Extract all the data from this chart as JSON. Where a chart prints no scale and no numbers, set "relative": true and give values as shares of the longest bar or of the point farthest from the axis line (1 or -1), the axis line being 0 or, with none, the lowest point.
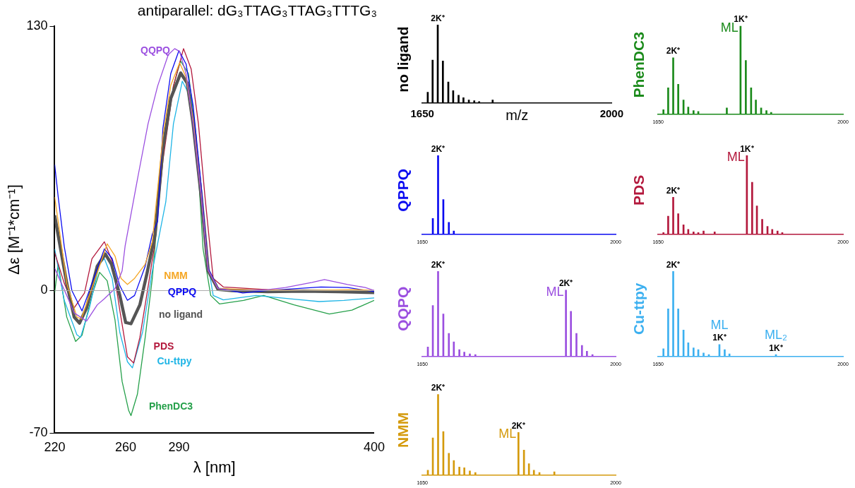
{
  "chart_data": [
    {
      "type": "line",
      "title": "antiparallel: dG₃TTAG₃TTAG₃TTTG₃",
      "xlabel": "λ [nm]",
      "ylabel": "Δε [M⁻¹*cm⁻¹]",
      "xlim": [
        220,
        400
      ],
      "xticks": [
        220,
        260,
        290,
        400
      ],
      "ylim": [
        -70,
        130
      ],
      "yticks": [
        -70,
        0,
        130
      ],
      "ref_lines": [
        {
          "axis": "y",
          "value": 0,
          "color": "#aaaaaa"
        }
      ],
      "series": [
        {
          "name": "QQPQ",
          "color": "#9b4fe0",
          "x": [
            220,
            226.8,
            231,
            238,
            244,
            248,
            254,
            258,
            259.7,
            266.9,
            272.6,
            278,
            284,
            287.6,
            290.4,
            294,
            298,
            302.6,
            306.5,
            312,
            320,
            326,
            340,
            350,
            365,
            372,
            385,
            395,
            400
          ],
          "values": [
            11,
            -2.4,
            -11,
            -15,
            -7,
            -4,
            1,
            9.7,
            22,
            56,
            82,
            100.6,
            116,
            119,
            117.6,
            106.7,
            82,
            46,
            10,
            1,
            0,
            0,
            0.5,
            1.5,
            4,
            5.4,
            3,
            1.5,
            0
          ]
        },
        {
          "name": "NMM",
          "color": "#f5a623",
          "x": [
            220,
            222,
            226.8,
            232.5,
            235,
            241,
            246.7,
            249.6,
            254,
            257.4,
            261,
            265,
            271,
            275,
            281,
            285.4,
            290.4,
            294,
            298,
            302.6,
            306.5,
            312,
            330,
            360,
            390,
            400
          ],
          "values": [
            46,
            34,
            3.6,
            -13,
            -14,
            1.2,
            15.7,
            23,
            17,
            6,
            3,
            6,
            13,
            24,
            76,
            101,
            112,
            105,
            84,
            47,
            10,
            1,
            0.5,
            0,
            0.5,
            0
          ]
        },
        {
          "name": "QPPQ",
          "color": "#0a0af0",
          "x": [
            220,
            222,
            225.4,
            229.7,
            235.4,
            241,
            248,
            252.4,
            256.7,
            261,
            265,
            271,
            275,
            278,
            281,
            285.4,
            290,
            294,
            298,
            302.6,
            306.5,
            312,
            326,
            340,
            370,
            385,
            400
          ],
          "values": [
            62,
            46,
            21.7,
            0,
            -10,
            3.6,
            20.5,
            15.7,
            2.4,
            -4.8,
            -2.4,
            12,
            27.8,
            34,
            80,
            106.7,
            118,
            111.5,
            91,
            51,
            10.9,
            1.2,
            -1.2,
            0,
            1.8,
            1.5,
            -0.5
          ]
        },
        {
          "name": "no ligand",
          "color": "#555555",
          "x": [
            220,
            222,
            226.8,
            231,
            234,
            238,
            244,
            248.5,
            252,
            256.7,
            260,
            263,
            268,
            272,
            276.6,
            281,
            285.4,
            291,
            294.7,
            298,
            302.6,
            306.5,
            312,
            320,
            340,
            360,
            380,
            400
          ],
          "values": [
            37,
            27,
            3.6,
            -13,
            -16,
            -8.5,
            12,
            18,
            13,
            -2.4,
            -15.7,
            -16.3,
            -7,
            8.4,
            27.8,
            70,
            94.5,
            107,
            102,
            82,
            46,
            9.7,
            0.6,
            0,
            -0.5,
            -0.3,
            -0.5,
            -1
          ]
        },
        {
          "name": "PDS",
          "color": "#b3183c",
          "x": [
            220,
            225.4,
            231,
            236.8,
            241,
            248,
            252.4,
            256.7,
            261,
            264.5,
            268,
            272.3,
            276,
            281,
            286.9,
            292.6,
            296.9,
            301,
            304.7,
            309.3,
            315,
            340,
            360,
            380,
            400
          ],
          "values": [
            18.7,
            3.6,
            -8.5,
            -1.2,
            15.7,
            24,
            14.5,
            -9.7,
            -32.6,
            -35.6,
            -23,
            0,
            20.5,
            64,
            100.6,
            119,
            109,
            82,
            46,
            6,
            1.8,
            0.5,
            0,
            -0.5,
            0
          ]
        },
        {
          "name": "Cu-ttpy",
          "color": "#1fb5e6",
          "x": [
            220,
            225.4,
            232.5,
            234.6,
            239.6,
            245.3,
            248,
            252.4,
            256.7,
            261,
            263.8,
            269.5,
            275,
            282.6,
            286.9,
            291.9,
            296.9,
            301,
            305,
            309.3,
            315,
            333.5,
            354.8,
            369,
            383,
            400
          ],
          "values": [
            20.5,
            -4.8,
            -21.7,
            -23,
            -8.5,
            13.3,
            15.7,
            6,
            -20.5,
            -35,
            -38,
            -20.5,
            9.7,
            43.6,
            82,
            103,
            94.5,
            64,
            20.5,
            -2.4,
            -4.6,
            -2.4,
            -4.2,
            -5.4,
            -4.8,
            -3.6
          ]
        },
        {
          "name": "PhenDC3",
          "color": "#25a04a",
          "x": [
            220,
            222,
            226.8,
            231.8,
            235.4,
            241,
            245.3,
            249.6,
            254,
            258,
            261.7,
            263,
            266.6,
            271,
            275,
            281,
            286.9,
            290.9,
            295.4,
            299.7,
            303.6,
            307.9,
            312.9,
            326.4,
            337.7,
            354.8,
            374.7,
            387.5,
            400
          ],
          "values": [
            -1,
            13,
            -13,
            -25,
            -22,
            -2.4,
            9,
            4.8,
            -14.5,
            -44.7,
            -59,
            -61.5,
            -51,
            -23,
            6,
            68,
            100.6,
            113,
            106.7,
            76,
            20.5,
            -2.4,
            -6.6,
            -4.8,
            -2.4,
            -7,
            -11.5,
            -9.6,
            -4.8
          ]
        }
      ]
    },
    {
      "type": "bar",
      "ylabel": "no ligand",
      "xlabel": "m/z",
      "relative": true,
      "xlim": [
        1650,
        2000
      ],
      "xticks": [
        1650,
        2000
      ],
      "annotations": [
        {
          "text": "2K⁺",
          "x": 1678.5,
          "y": 1
        }
      ],
      "series": [
        {
          "color": "#000000",
          "x": [
            1660,
            1669,
            1678.5,
            1688,
            1698,
            1707,
            1717,
            1726,
            1736,
            1746,
            1755,
            1780
          ],
          "values": [
            0.14,
            0.55,
            1,
            0.54,
            0.27,
            0.16,
            0.1,
            0.07,
            0.04,
            0.03,
            0.02,
            0.04
          ]
        }
      ]
    },
    {
      "type": "bar",
      "ylabel": "PhenDC3",
      "relative": true,
      "xlim": [
        1650,
        2000
      ],
      "xticks": [
        1650,
        2000
      ],
      "annotations": [
        {
          "text": "2K⁺",
          "x": 1678.5,
          "y": 0.64
        },
        {
          "text": "1K⁺",
          "x": 1806,
          "y": 1
        },
        {
          "text": "ML",
          "x": 1806,
          "y": 1
        }
      ],
      "series": [
        {
          "color": "#1a8a1a",
          "x": [
            1660,
            1669,
            1678.5,
            1688,
            1698,
            1707,
            1717,
            1726,
            1780,
            1806,
            1816,
            1826,
            1835,
            1845,
            1855,
            1864
          ],
          "values": [
            0.05,
            0.3,
            0.64,
            0.34,
            0.16,
            0.08,
            0.04,
            0.03,
            0.07,
            1,
            0.61,
            0.3,
            0.16,
            0.07,
            0.04,
            0.02
          ]
        }
      ]
    },
    {
      "type": "bar",
      "ylabel": "QPPQ",
      "relative": true,
      "xlim": [
        1650,
        2000
      ],
      "xticks": [
        1650,
        2000
      ],
      "annotations": [
        {
          "text": "2K⁺",
          "x": 1678.5,
          "y": 1
        }
      ],
      "series": [
        {
          "color": "#0a0af0",
          "x": [
            1669,
            1678.5,
            1688,
            1698,
            1707
          ],
          "values": [
            0.2,
            1,
            0.44,
            0.15,
            0.04
          ]
        }
      ]
    },
    {
      "type": "bar",
      "ylabel": "PDS",
      "relative": true,
      "xlim": [
        1650,
        2000
      ],
      "xticks": [
        1650,
        2000
      ],
      "annotations": [
        {
          "text": "2K⁺",
          "x": 1678.5,
          "y": 0.47
        },
        {
          "text": "1K⁺",
          "x": 1818,
          "y": 1
        },
        {
          "text": "ML",
          "x": 1818,
          "y": 1
        }
      ],
      "series": [
        {
          "color": "#b3183c",
          "x": [
            1660,
            1669,
            1678.5,
            1688,
            1698,
            1707,
            1717,
            1726,
            1736,
            1757,
            1818,
            1828,
            1837,
            1847,
            1857,
            1866,
            1876,
            1885
          ],
          "values": [
            0.02,
            0.23,
            0.47,
            0.26,
            0.12,
            0.06,
            0.03,
            0.02,
            0.04,
            0.03,
            1,
            0.66,
            0.36,
            0.19,
            0.1,
            0.06,
            0.04,
            0.02
          ]
        }
      ]
    },
    {
      "type": "bar",
      "ylabel": "QQPQ",
      "relative": true,
      "xlim": [
        1650,
        2000
      ],
      "xticks": [
        1650,
        2000
      ],
      "annotations": [
        {
          "text": "2K⁺",
          "x": 1678.5,
          "y": 1
        },
        {
          "text": "2K⁺",
          "x": 1910,
          "y": 0.78
        },
        {
          "text": "ML",
          "x": 1910,
          "y": 0.78
        }
      ],
      "series": [
        {
          "color": "#9b4fe0",
          "x": [
            1660,
            1669,
            1678.5,
            1688,
            1698,
            1707,
            1717,
            1726,
            1736,
            1746,
            1910,
            1919,
            1929,
            1939,
            1948,
            1958
          ],
          "values": [
            0.11,
            0.6,
            1,
            0.5,
            0.27,
            0.17,
            0.08,
            0.05,
            0.03,
            0.02,
            0.78,
            0.53,
            0.27,
            0.13,
            0.06,
            0.02
          ]
        }
      ]
    },
    {
      "type": "bar",
      "ylabel": "Cu-ttpy",
      "relative": true,
      "xlim": [
        1650,
        2000
      ],
      "xticks": [
        1650,
        2000
      ],
      "annotations": [
        {
          "text": "2K⁺",
          "x": 1678.5,
          "y": 1
        },
        {
          "text": "1K⁺",
          "x": 1766,
          "y": 0.14
        },
        {
          "text": "ML",
          "x": 1766,
          "y": 0.14
        },
        {
          "text": "1K⁺",
          "x": 1873,
          "y": 0.02
        },
        {
          "text": "ML₂",
          "x": 1873,
          "y": 0.02
        }
      ],
      "series": [
        {
          "color": "#3cb0f0",
          "x": [
            1660,
            1669,
            1678.5,
            1688,
            1698,
            1707,
            1717,
            1726,
            1736,
            1746,
            1766,
            1776,
            1785,
            1873
          ],
          "values": [
            0.09,
            0.56,
            1,
            0.56,
            0.31,
            0.16,
            0.1,
            0.08,
            0.04,
            0.02,
            0.14,
            0.08,
            0.03,
            0.02
          ]
        }
      ]
    },
    {
      "type": "bar",
      "ylabel": "NMM",
      "relative": true,
      "xlim": [
        1650,
        2000
      ],
      "xticks": [
        1650,
        2000
      ],
      "annotations": [
        {
          "text": "2K⁺",
          "x": 1678.5,
          "y": 1
        },
        {
          "text": "2K⁺",
          "x": 1824,
          "y": 0.53
        },
        {
          "text": "ML",
          "x": 1824,
          "y": 0.53
        }
      ],
      "series": [
        {
          "color": "#d49a0c",
          "x": [
            1660,
            1669,
            1678.5,
            1688,
            1698,
            1707,
            1717,
            1726,
            1736,
            1746,
            1824,
            1834,
            1843,
            1852,
            1862,
            1889
          ],
          "values": [
            0.06,
            0.46,
            1,
            0.54,
            0.27,
            0.18,
            0.1,
            0.09,
            0.05,
            0.03,
            0.53,
            0.31,
            0.14,
            0.06,
            0.03,
            0.04
          ]
        }
      ]
    }
  ]
}
